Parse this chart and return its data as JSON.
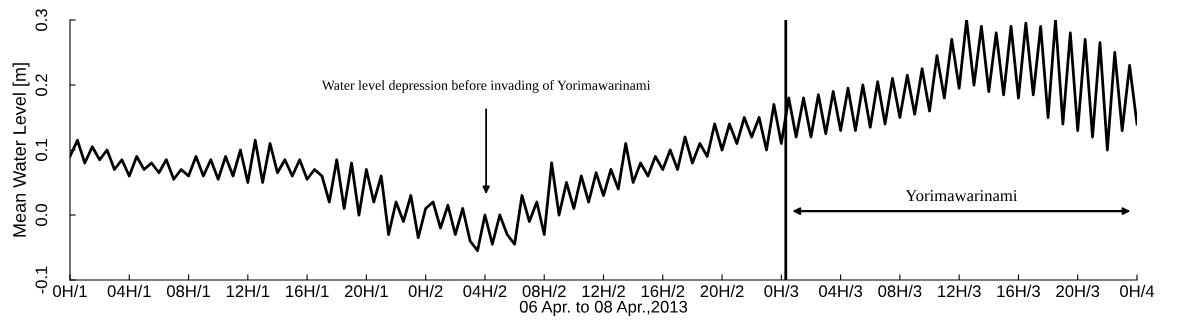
{
  "chart_data": {
    "type": "line",
    "xlabel": "06 Apr. to 08 Apr.,2013",
    "ylabel": "Mean Water Level [m]",
    "xlim": [
      "2013-04-06T00:00",
      "2013-04-09T00:00"
    ],
    "ylim": [
      -0.1,
      0.3
    ],
    "xticks": [
      {
        "value": "2013-04-06T00:00",
        "label": "0H/1"
      },
      {
        "value": "2013-04-06T04:00",
        "label": "04H/1"
      },
      {
        "value": "2013-04-06T08:00",
        "label": "08H/1"
      },
      {
        "value": "2013-04-06T12:00",
        "label": "12H/1"
      },
      {
        "value": "2013-04-06T16:00",
        "label": "16H/1"
      },
      {
        "value": "2013-04-06T20:00",
        "label": "20H/1"
      },
      {
        "value": "2013-04-07T00:00",
        "label": "0H/2"
      },
      {
        "value": "2013-04-07T04:00",
        "label": "04H/2"
      },
      {
        "value": "2013-04-07T08:00",
        "label": "08H/2"
      },
      {
        "value": "2013-04-07T12:00",
        "label": "12H/2"
      },
      {
        "value": "2013-04-07T16:00",
        "label": "16H/2"
      },
      {
        "value": "2013-04-07T20:00",
        "label": "20H/2"
      },
      {
        "value": "2013-04-08T00:00",
        "label": "0H/3"
      },
      {
        "value": "2013-04-08T04:00",
        "label": "04H/3"
      },
      {
        "value": "2013-04-08T08:00",
        "label": "08H/3"
      },
      {
        "value": "2013-04-08T12:00",
        "label": "12H/3"
      },
      {
        "value": "2013-04-08T16:00",
        "label": "16H/3"
      },
      {
        "value": "2013-04-08T20:00",
        "label": "20H/3"
      },
      {
        "value": "2013-04-09T00:00",
        "label": "0H/4"
      }
    ],
    "yticks": [
      -0.1,
      {
        "value": 0,
        "label": "0.0"
      },
      0.1,
      0.2,
      0.3
    ],
    "grid": false,
    "legend": false,
    "marker": "none",
    "line_style": "solid",
    "series": [
      {
        "color": "#000000",
        "x": [
          "2013-04-06T00:00",
          "2013-04-06T00:30",
          "2013-04-06T01:00",
          "2013-04-06T01:30",
          "2013-04-06T02:00",
          "2013-04-06T02:30",
          "2013-04-06T03:00",
          "2013-04-06T03:30",
          "2013-04-06T04:00",
          "2013-04-06T04:30",
          "2013-04-06T05:00",
          "2013-04-06T05:30",
          "2013-04-06T06:00",
          "2013-04-06T06:30",
          "2013-04-06T07:00",
          "2013-04-06T07:30",
          "2013-04-06T08:00",
          "2013-04-06T08:30",
          "2013-04-06T09:00",
          "2013-04-06T09:30",
          "2013-04-06T10:00",
          "2013-04-06T10:30",
          "2013-04-06T11:00",
          "2013-04-06T11:30",
          "2013-04-06T12:00",
          "2013-04-06T12:30",
          "2013-04-06T13:00",
          "2013-04-06T13:30",
          "2013-04-06T14:00",
          "2013-04-06T14:30",
          "2013-04-06T15:00",
          "2013-04-06T15:30",
          "2013-04-06T16:00",
          "2013-04-06T16:30",
          "2013-04-06T17:00",
          "2013-04-06T17:30",
          "2013-04-06T18:00",
          "2013-04-06T18:30",
          "2013-04-06T19:00",
          "2013-04-06T19:30",
          "2013-04-06T20:00",
          "2013-04-06T20:30",
          "2013-04-06T21:00",
          "2013-04-06T21:30",
          "2013-04-06T22:00",
          "2013-04-06T22:30",
          "2013-04-06T23:00",
          "2013-04-06T23:30",
          "2013-04-07T00:00",
          "2013-04-07T00:30",
          "2013-04-07T01:00",
          "2013-04-07T01:30",
          "2013-04-07T02:00",
          "2013-04-07T02:30",
          "2013-04-07T03:00",
          "2013-04-07T03:30",
          "2013-04-07T04:00",
          "2013-04-07T04:30",
          "2013-04-07T05:00",
          "2013-04-07T05:30",
          "2013-04-07T06:00",
          "2013-04-07T06:30",
          "2013-04-07T07:00",
          "2013-04-07T07:30",
          "2013-04-07T08:00",
          "2013-04-07T08:30",
          "2013-04-07T09:00",
          "2013-04-07T09:30",
          "2013-04-07T10:00",
          "2013-04-07T10:30",
          "2013-04-07T11:00",
          "2013-04-07T11:30",
          "2013-04-07T12:00",
          "2013-04-07T12:30",
          "2013-04-07T13:00",
          "2013-04-07T13:30",
          "2013-04-07T14:00",
          "2013-04-07T14:30",
          "2013-04-07T15:00",
          "2013-04-07T15:30",
          "2013-04-07T16:00",
          "2013-04-07T16:30",
          "2013-04-07T17:00",
          "2013-04-07T17:30",
          "2013-04-07T18:00",
          "2013-04-07T18:30",
          "2013-04-07T19:00",
          "2013-04-07T19:30",
          "2013-04-07T20:00",
          "2013-04-07T20:30",
          "2013-04-07T21:00",
          "2013-04-07T21:30",
          "2013-04-07T22:00",
          "2013-04-07T22:30",
          "2013-04-07T23:00",
          "2013-04-07T23:30",
          "2013-04-08T00:00",
          "2013-04-08T00:30",
          "2013-04-08T01:00",
          "2013-04-08T01:30",
          "2013-04-08T02:00",
          "2013-04-08T02:30",
          "2013-04-08T03:00",
          "2013-04-08T03:30",
          "2013-04-08T04:00",
          "2013-04-08T04:30",
          "2013-04-08T05:00",
          "2013-04-08T05:30",
          "2013-04-08T06:00",
          "2013-04-08T06:30",
          "2013-04-08T07:00",
          "2013-04-08T07:30",
          "2013-04-08T08:00",
          "2013-04-08T08:30",
          "2013-04-08T09:00",
          "2013-04-08T09:30",
          "2013-04-08T10:00",
          "2013-04-08T10:30",
          "2013-04-08T11:00",
          "2013-04-08T11:30",
          "2013-04-08T12:00",
          "2013-04-08T12:30",
          "2013-04-08T13:00",
          "2013-04-08T13:30",
          "2013-04-08T14:00",
          "2013-04-08T14:30",
          "2013-04-08T15:00",
          "2013-04-08T15:30",
          "2013-04-08T16:00",
          "2013-04-08T16:30",
          "2013-04-08T17:00",
          "2013-04-08T17:30",
          "2013-04-08T18:00",
          "2013-04-08T18:30",
          "2013-04-08T19:00",
          "2013-04-08T19:30",
          "2013-04-08T20:00",
          "2013-04-08T20:30",
          "2013-04-08T21:00",
          "2013-04-08T21:30",
          "2013-04-08T22:00",
          "2013-04-08T22:30",
          "2013-04-08T23:00",
          "2013-04-08T23:30",
          "2013-04-09T00:00"
        ],
        "values": [
          0.09,
          0.115,
          0.08,
          0.105,
          0.085,
          0.1,
          0.07,
          0.085,
          0.06,
          0.09,
          0.07,
          0.08,
          0.065,
          0.085,
          0.055,
          0.07,
          0.06,
          0.09,
          0.06,
          0.085,
          0.055,
          0.09,
          0.06,
          0.1,
          0.05,
          0.115,
          0.05,
          0.11,
          0.065,
          0.085,
          0.06,
          0.085,
          0.055,
          0.07,
          0.06,
          0.02,
          0.085,
          0.01,
          0.08,
          0.0,
          0.07,
          0.02,
          0.06,
          -0.03,
          0.02,
          -0.01,
          0.03,
          -0.035,
          0.01,
          0.02,
          -0.02,
          0.015,
          -0.03,
          0.01,
          -0.04,
          -0.055,
          0.0,
          -0.045,
          0.0,
          -0.03,
          -0.045,
          0.03,
          -0.01,
          0.02,
          -0.03,
          0.08,
          0.0,
          0.05,
          0.01,
          0.06,
          0.02,
          0.065,
          0.03,
          0.07,
          0.04,
          0.11,
          0.05,
          0.08,
          0.06,
          0.09,
          0.07,
          0.1,
          0.07,
          0.12,
          0.08,
          0.11,
          0.09,
          0.14,
          0.1,
          0.14,
          0.11,
          0.15,
          0.12,
          0.15,
          0.1,
          0.17,
          0.11,
          0.18,
          0.12,
          0.18,
          0.12,
          0.185,
          0.125,
          0.19,
          0.13,
          0.195,
          0.13,
          0.2,
          0.135,
          0.205,
          0.14,
          0.21,
          0.15,
          0.215,
          0.155,
          0.225,
          0.16,
          0.245,
          0.18,
          0.27,
          0.195,
          0.3,
          0.2,
          0.29,
          0.19,
          0.28,
          0.185,
          0.29,
          0.18,
          0.295,
          0.185,
          0.29,
          0.15,
          0.3,
          0.14,
          0.28,
          0.13,
          0.27,
          0.12,
          0.265,
          0.1,
          0.25,
          0.13,
          0.23,
          0.14
        ]
      }
    ],
    "ref_lines": [
      {
        "axis": "x",
        "value": "2013-04-08T00:18",
        "color": "#000000",
        "line_style": "solid"
      }
    ],
    "annotations": [
      "Water level depression before invading of Yorimawarinami",
      "Yorimawarinami"
    ]
  }
}
